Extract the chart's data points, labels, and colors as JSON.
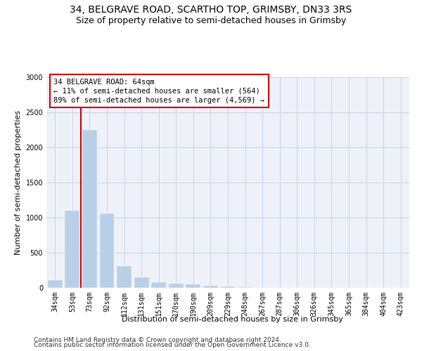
{
  "title": "34, BELGRAVE ROAD, SCARTHO TOP, GRIMSBY, DN33 3RS",
  "subtitle": "Size of property relative to semi-detached houses in Grimsby",
  "xlabel": "Distribution of semi-detached houses by size in Grimsby",
  "ylabel": "Number of semi-detached properties",
  "footer1": "Contains HM Land Registry data © Crown copyright and database right 2024.",
  "footer2": "Contains public sector information licensed under the Open Government Licence v3.0.",
  "annotation_line1": "34 BELGRAVE ROAD: 64sqm",
  "annotation_line2": "← 11% of semi-detached houses are smaller (564)",
  "annotation_line3": "89% of semi-detached houses are larger (4,569) →",
  "bar_labels": [
    "34sqm",
    "53sqm",
    "73sqm",
    "92sqm",
    "112sqm",
    "131sqm",
    "151sqm",
    "170sqm",
    "190sqm",
    "209sqm",
    "229sqm",
    "248sqm",
    "267sqm",
    "287sqm",
    "306sqm",
    "326sqm",
    "345sqm",
    "365sqm",
    "384sqm",
    "404sqm",
    "423sqm"
  ],
  "bar_values": [
    110,
    1100,
    2250,
    1060,
    310,
    155,
    80,
    60,
    55,
    35,
    20,
    10,
    5,
    3,
    2,
    2,
    1,
    1,
    1,
    0,
    0
  ],
  "bar_color": "#b8cfe8",
  "bar_edge_color": "#b8cfe8",
  "grid_color": "#c8d4e8",
  "bg_color": "#eef2f8",
  "red_line_x": 1.5,
  "red_line_color": "#cc0000",
  "ylim": [
    0,
    3000
  ],
  "yticks": [
    0,
    500,
    1000,
    1500,
    2000,
    2500,
    3000
  ],
  "title_fontsize": 10,
  "subtitle_fontsize": 9,
  "axis_label_fontsize": 8,
  "tick_fontsize": 7,
  "annotation_fontsize": 7.5,
  "footer_fontsize": 6.5
}
